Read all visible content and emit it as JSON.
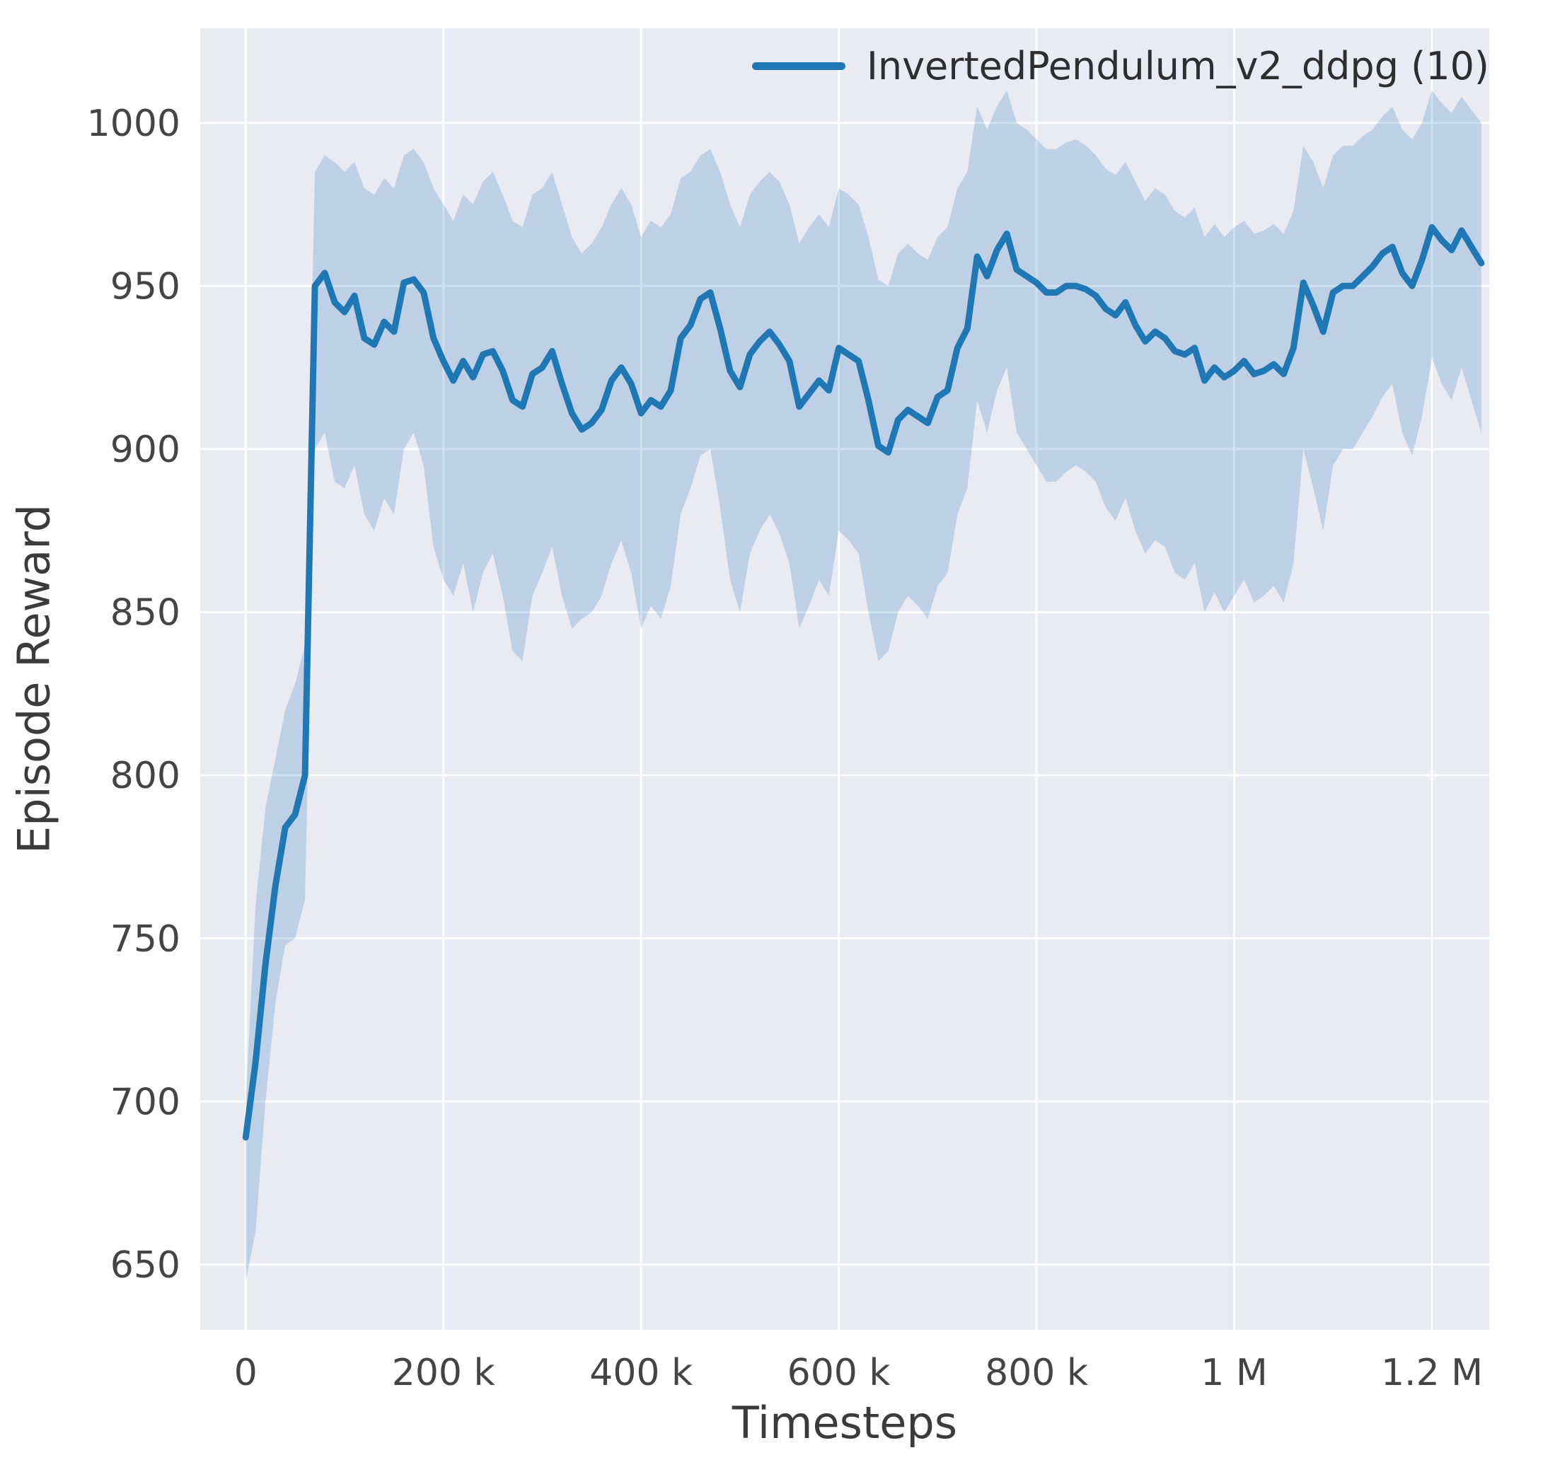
{
  "figure": {
    "xlabel": "Timesteps",
    "ylabel": "Episode Reward",
    "legend": {
      "label": "InvertedPendulum_v2_ddpg (10)"
    }
  },
  "chart_data": {
    "type": "line",
    "title": "",
    "xlabel": "Timesteps",
    "ylabel": "Episode Reward",
    "legend": [
      "InvertedPendulum_v2_ddpg (10)"
    ],
    "legend_position": "upper right",
    "grid": true,
    "plot_bg": "#eaeaf2",
    "grid_color": "#ffffff",
    "line_color": "#1f77b4",
    "band_opacity": 0.22,
    "xlim": [
      -46000,
      1258000
    ],
    "ylim": [
      630,
      1029
    ],
    "xticks": [
      {
        "v": 0,
        "label": "0"
      },
      {
        "v": 200000,
        "label": "200 k"
      },
      {
        "v": 400000,
        "label": "400 k"
      },
      {
        "v": 600000,
        "label": "600 k"
      },
      {
        "v": 800000,
        "label": "800 k"
      },
      {
        "v": 1000000,
        "label": "1 M"
      },
      {
        "v": 1200000,
        "label": "1.2 M"
      }
    ],
    "yticks": [
      {
        "v": 650,
        "label": "650"
      },
      {
        "v": 700,
        "label": "700"
      },
      {
        "v": 750,
        "label": "750"
      },
      {
        "v": 800,
        "label": "800"
      },
      {
        "v": 850,
        "label": "850"
      },
      {
        "v": 900,
        "label": "900"
      },
      {
        "v": 950,
        "label": "950"
      },
      {
        "v": 1000,
        "label": "1000"
      }
    ],
    "x": [
      0,
      10000,
      20000,
      30000,
      40000,
      50000,
      60000,
      70000,
      80000,
      90000,
      100000,
      110000,
      120000,
      130000,
      140000,
      150000,
      160000,
      170000,
      180000,
      190000,
      200000,
      210000,
      220000,
      230000,
      240000,
      250000,
      260000,
      270000,
      280000,
      290000,
      300000,
      310000,
      320000,
      330000,
      340000,
      350000,
      360000,
      370000,
      380000,
      390000,
      400000,
      410000,
      420000,
      430000,
      440000,
      450000,
      460000,
      470000,
      480000,
      490000,
      500000,
      510000,
      520000,
      530000,
      540000,
      550000,
      560000,
      570000,
      580000,
      590000,
      600000,
      610000,
      620000,
      630000,
      640000,
      650000,
      660000,
      670000,
      680000,
      690000,
      700000,
      710000,
      720000,
      730000,
      740000,
      750000,
      760000,
      770000,
      780000,
      790000,
      800000,
      810000,
      820000,
      830000,
      840000,
      850000,
      860000,
      870000,
      880000,
      890000,
      900000,
      910000,
      920000,
      930000,
      940000,
      950000,
      960000,
      970000,
      980000,
      990000,
      1000000,
      1010000,
      1020000,
      1030000,
      1040000,
      1050000,
      1060000,
      1070000,
      1080000,
      1090000,
      1100000,
      1110000,
      1120000,
      1130000,
      1140000,
      1150000,
      1160000,
      1170000,
      1180000,
      1190000,
      1200000,
      1210000,
      1220000,
      1230000,
      1240000,
      1250000
    ],
    "mean": [
      689,
      712,
      742,
      766,
      784,
      788,
      800,
      950,
      954,
      945,
      942,
      947,
      934,
      932,
      939,
      936,
      951,
      952,
      948,
      934,
      927,
      921,
      927,
      922,
      929,
      930,
      924,
      915,
      913,
      923,
      925,
      930,
      920,
      911,
      906,
      908,
      912,
      921,
      925,
      920,
      911,
      915,
      913,
      918,
      934,
      938,
      946,
      948,
      937,
      924,
      919,
      929,
      933,
      936,
      932,
      927,
      913,
      917,
      921,
      918,
      931,
      929,
      927,
      915,
      901,
      899,
      909,
      912,
      910,
      908,
      916,
      918,
      931,
      937,
      959,
      953,
      961,
      966,
      955,
      953,
      951,
      948,
      948,
      950,
      950,
      949,
      947,
      943,
      941,
      945,
      938,
      933,
      936,
      934,
      930,
      929,
      931,
      921,
      925,
      922,
      924,
      927,
      923,
      924,
      926,
      923,
      931,
      951,
      944,
      936,
      948,
      950,
      950,
      953,
      956,
      960,
      962,
      954,
      950,
      958,
      968,
      964,
      961,
      967,
      962,
      957
    ],
    "lower": [
      645,
      660,
      700,
      730,
      748,
      750,
      762,
      900,
      905,
      890,
      888,
      895,
      880,
      875,
      885,
      880,
      900,
      905,
      895,
      870,
      860,
      855,
      865,
      850,
      862,
      868,
      855,
      838,
      835,
      855,
      862,
      870,
      855,
      845,
      848,
      850,
      855,
      865,
      872,
      862,
      845,
      852,
      848,
      858,
      880,
      888,
      898,
      900,
      882,
      860,
      850,
      868,
      875,
      880,
      874,
      865,
      845,
      852,
      860,
      855,
      875,
      872,
      868,
      850,
      835,
      838,
      850,
      855,
      852,
      848,
      858,
      862,
      880,
      888,
      915,
      905,
      918,
      925,
      905,
      900,
      895,
      890,
      890,
      893,
      895,
      893,
      890,
      882,
      878,
      885,
      875,
      868,
      872,
      870,
      862,
      860,
      865,
      850,
      856,
      850,
      855,
      860,
      853,
      855,
      858,
      853,
      865,
      900,
      888,
      875,
      895,
      900,
      900,
      905,
      910,
      916,
      920,
      905,
      898,
      910,
      928,
      920,
      915,
      925,
      915,
      905
    ],
    "upper": [
      700,
      760,
      790,
      805,
      820,
      828,
      840,
      985,
      990,
      988,
      985,
      988,
      980,
      978,
      983,
      980,
      990,
      992,
      988,
      980,
      975,
      970,
      978,
      975,
      982,
      985,
      978,
      970,
      968,
      978,
      980,
      985,
      975,
      965,
      960,
      963,
      968,
      975,
      980,
      975,
      965,
      970,
      968,
      972,
      983,
      985,
      990,
      992,
      985,
      975,
      968,
      978,
      982,
      985,
      982,
      975,
      963,
      968,
      972,
      968,
      980,
      978,
      975,
      965,
      952,
      950,
      960,
      963,
      960,
      958,
      965,
      968,
      980,
      985,
      1005,
      998,
      1005,
      1010,
      1000,
      998,
      995,
      992,
      992,
      994,
      995,
      993,
      990,
      986,
      984,
      988,
      982,
      976,
      980,
      978,
      973,
      971,
      974,
      965,
      969,
      965,
      968,
      970,
      966,
      967,
      969,
      966,
      973,
      993,
      988,
      980,
      990,
      993,
      993,
      996,
      998,
      1002,
      1005,
      998,
      995,
      1000,
      1010,
      1006,
      1003,
      1008,
      1004,
      1000
    ]
  }
}
